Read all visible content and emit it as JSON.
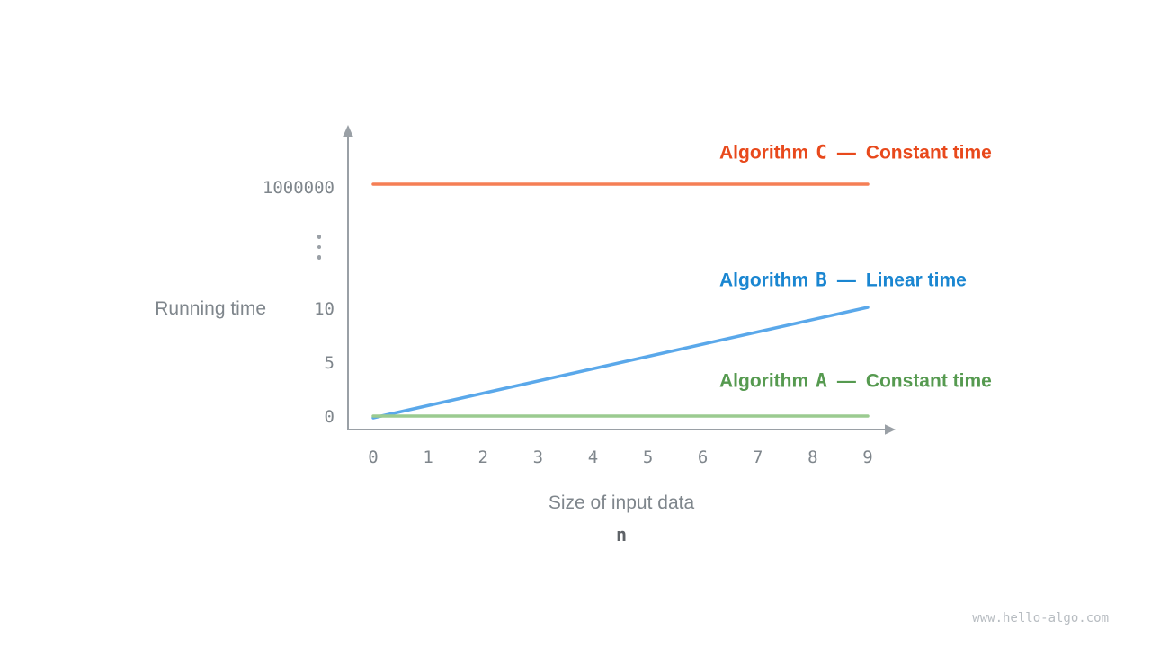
{
  "chart_data": {
    "type": "line",
    "title": "",
    "xlabel": "Size of input data",
    "xlabel_symbol": "n",
    "ylabel": "Running time",
    "x": [
      0,
      1,
      2,
      3,
      4,
      5,
      6,
      7,
      8,
      9
    ],
    "y_ticks_top_to_bottom": [
      "1000000",
      "⋮",
      "10",
      "5",
      "0"
    ],
    "y_axis_break": true,
    "ylim_visible": [
      0,
      10
    ],
    "axis_color": "#9aa0a6",
    "tick_color": "#7f868c",
    "legend_position": "right-inline",
    "grid": false,
    "series": [
      {
        "prefix": "Algorithm",
        "letter": "C",
        "dash": "—",
        "desc": "Constant time",
        "name": "Algorithm C — Constant time",
        "complexity": "constant",
        "values": [
          1000000,
          1000000,
          1000000,
          1000000,
          1000000,
          1000000,
          1000000,
          1000000,
          1000000,
          1000000
        ],
        "text_color": "#e8491c",
        "line_color": "#f57f55"
      },
      {
        "prefix": "Algorithm",
        "letter": "B",
        "dash": "—",
        "desc": "Linear time",
        "name": "Algorithm B — Linear time",
        "complexity": "linear",
        "values": [
          0,
          1.1,
          2.2,
          3.3,
          4.4,
          5.6,
          6.7,
          7.8,
          8.9,
          10
        ],
        "text_color": "#1a86d1",
        "line_color": "#5aa8ea"
      },
      {
        "prefix": "Algorithm",
        "letter": "A",
        "dash": "—",
        "desc": "Constant time",
        "name": "Algorithm A — Constant time",
        "complexity": "constant",
        "values": [
          1,
          1,
          1,
          1,
          1,
          1,
          1,
          1,
          1,
          1
        ],
        "text_color": "#569a50",
        "line_color": "#9bcb90"
      }
    ]
  },
  "watermark": "www.hello-algo.com"
}
